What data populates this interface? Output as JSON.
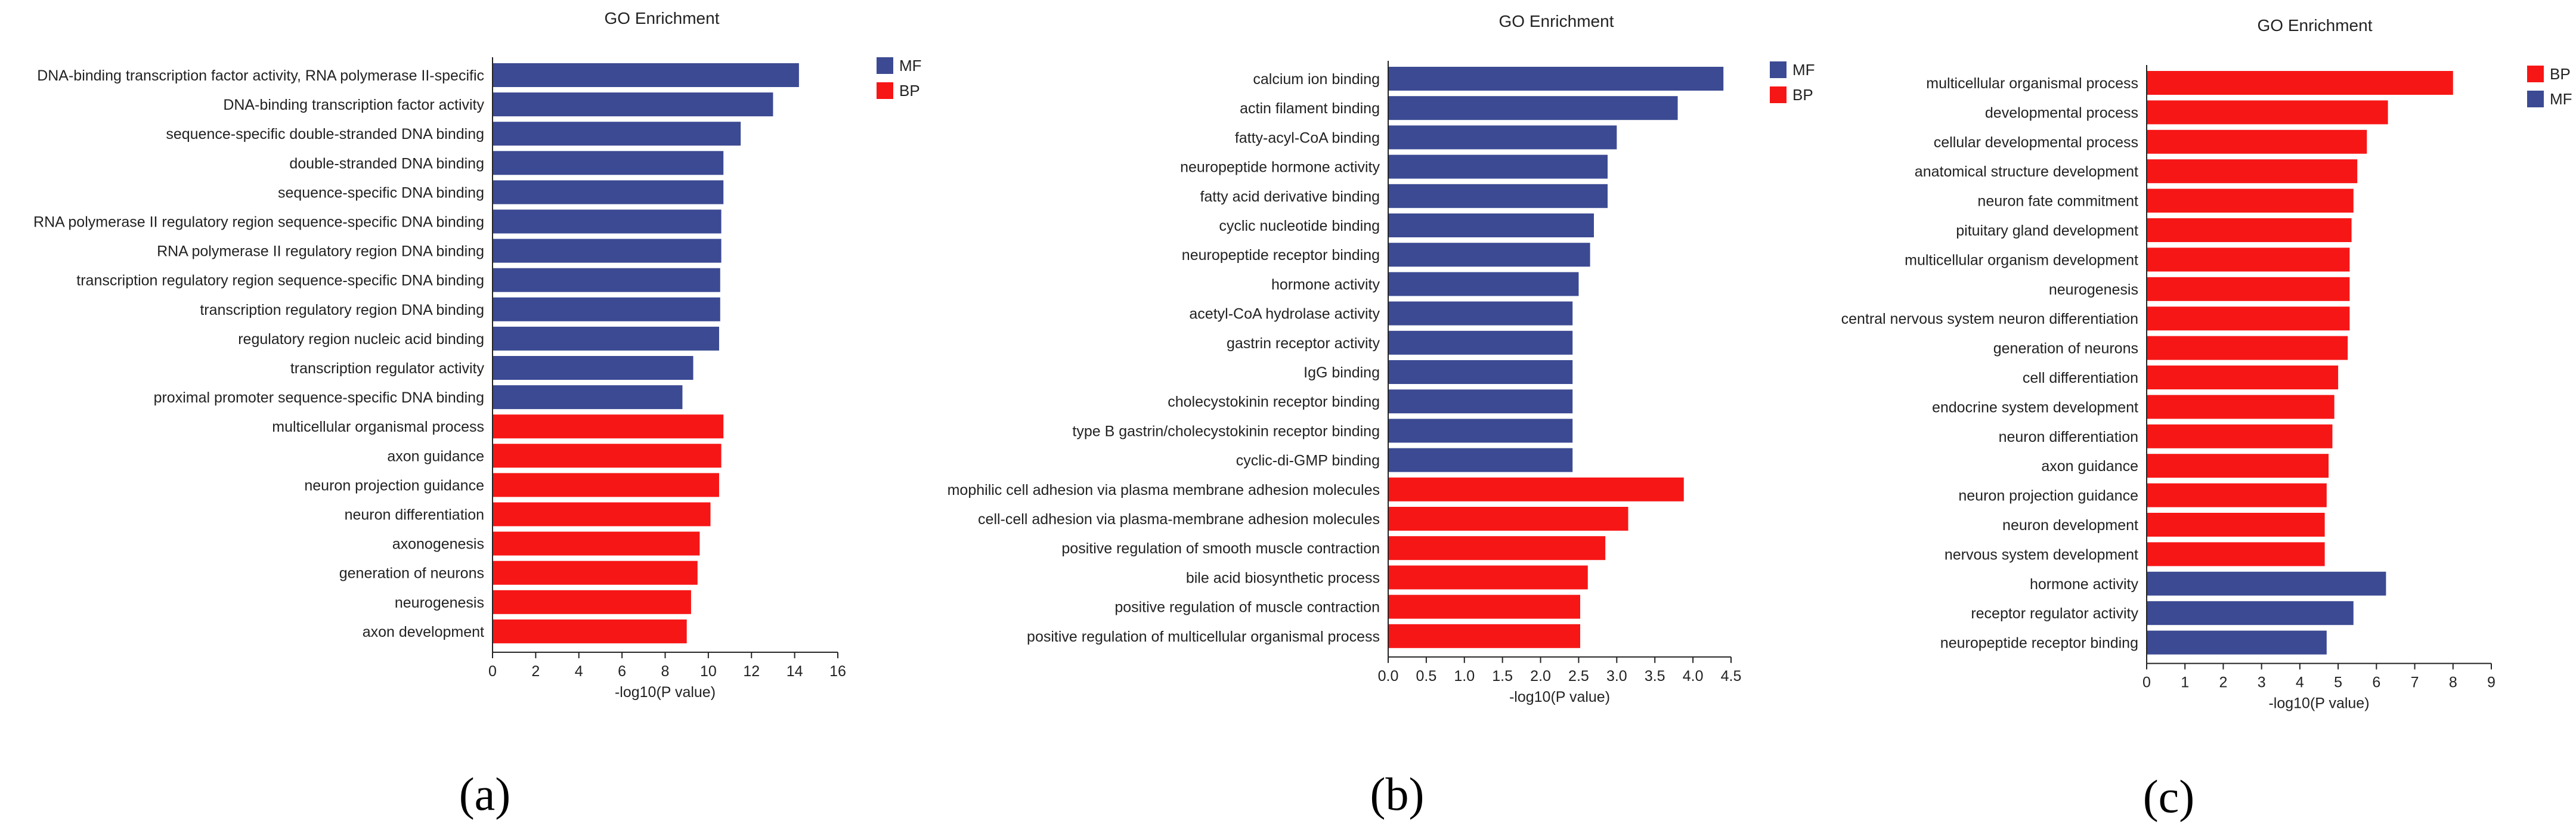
{
  "colors": {
    "MF": "#3c4a93",
    "BP": "#f71616",
    "axis": "#222222"
  },
  "chart_data": [
    {
      "type": "bar",
      "orientation": "horizontal",
      "panel_label": "(a)",
      "title": "GO Enrichment",
      "xlabel": "-log10(P value)",
      "xlim": [
        0,
        16
      ],
      "xticks": [
        "0",
        "2",
        "4",
        "6",
        "8",
        "10",
        "12",
        "14",
        "16"
      ],
      "legend": [
        {
          "name": "MF"
        },
        {
          "name": "BP"
        }
      ],
      "legend_position": "top-right",
      "categories": [
        "DNA-binding transcription factor activity, RNA polymerase II-specific",
        "DNA-binding transcription factor activity",
        "sequence-specific double-stranded DNA binding",
        "double-stranded DNA binding",
        "sequence-specific DNA binding",
        "RNA polymerase II regulatory region sequence-specific DNA binding",
        "RNA polymerase II regulatory region DNA binding",
        "transcription regulatory region sequence-specific DNA binding",
        "transcription regulatory region DNA binding",
        "regulatory region nucleic acid binding",
        "transcription regulator activity",
        "proximal promoter sequence-specific DNA binding",
        "multicellular organismal process",
        "axon guidance",
        "neuron projection guidance",
        "neuron differentiation",
        "axonogenesis",
        "generation of neurons",
        "neurogenesis",
        "axon development"
      ],
      "values": [
        14.2,
        13.0,
        11.5,
        10.7,
        10.7,
        10.6,
        10.6,
        10.55,
        10.55,
        10.5,
        9.3,
        8.8,
        10.7,
        10.6,
        10.5,
        10.1,
        9.6,
        9.5,
        9.2,
        9.0
      ],
      "groups": [
        "MF",
        "MF",
        "MF",
        "MF",
        "MF",
        "MF",
        "MF",
        "MF",
        "MF",
        "MF",
        "MF",
        "MF",
        "BP",
        "BP",
        "BP",
        "BP",
        "BP",
        "BP",
        "BP",
        "BP"
      ]
    },
    {
      "type": "bar",
      "orientation": "horizontal",
      "panel_label": "(b)",
      "title": "GO Enrichment",
      "xlabel": "-log10(P value)",
      "xlim": [
        0,
        4.5
      ],
      "xticks": [
        "0.0",
        "0.5",
        "1.0",
        "1.5",
        "2.0",
        "2.5",
        "3.0",
        "3.5",
        "4.0",
        "4.5"
      ],
      "legend": [
        {
          "name": "MF"
        },
        {
          "name": "BP"
        }
      ],
      "legend_position": "top-right",
      "categories": [
        "calcium ion binding",
        "actin filament binding",
        "fatty-acyl-CoA binding",
        "neuropeptide hormone activity",
        "fatty acid derivative binding",
        "cyclic nucleotide binding",
        "neuropeptide receptor binding",
        "hormone activity",
        "acetyl-CoA hydrolase activity",
        "gastrin receptor activity",
        "IgG binding",
        "cholecystokinin receptor binding",
        "type B gastrin/cholecystokinin receptor binding",
        "cyclic-di-GMP binding",
        "mophilic cell adhesion via plasma membrane adhesion molecules",
        "cell-cell adhesion via plasma-membrane adhesion molecules",
        "positive regulation of smooth muscle contraction",
        "bile acid biosynthetic process",
        "positive regulation of muscle contraction",
        "positive regulation of multicellular organismal process"
      ],
      "values": [
        4.4,
        3.8,
        3.0,
        2.88,
        2.88,
        2.7,
        2.65,
        2.5,
        2.42,
        2.42,
        2.42,
        2.42,
        2.42,
        2.42,
        3.88,
        3.15,
        2.85,
        2.62,
        2.52,
        2.52
      ],
      "groups": [
        "MF",
        "MF",
        "MF",
        "MF",
        "MF",
        "MF",
        "MF",
        "MF",
        "MF",
        "MF",
        "MF",
        "MF",
        "MF",
        "MF",
        "BP",
        "BP",
        "BP",
        "BP",
        "BP",
        "BP"
      ]
    },
    {
      "type": "bar",
      "orientation": "horizontal",
      "panel_label": "(c)",
      "title": "GO Enrichment",
      "xlabel": "-log10(P value)",
      "xlim": [
        0,
        9
      ],
      "xticks": [
        "0",
        "1",
        "2",
        "3",
        "4",
        "5",
        "6",
        "7",
        "8",
        "9"
      ],
      "legend": [
        {
          "name": "BP"
        },
        {
          "name": "MF"
        }
      ],
      "legend_position": "top-right",
      "categories": [
        "multicellular organismal process",
        "developmental process",
        "cellular developmental process",
        "anatomical structure development",
        "neuron fate commitment",
        "pituitary gland development",
        "multicellular organism development",
        "neurogenesis",
        "central nervous system neuron differentiation",
        "generation of neurons",
        "cell differentiation",
        "endocrine system development",
        "neuron differentiation",
        "axon guidance",
        "neuron projection guidance",
        "neuron development",
        "nervous system development",
        "hormone activity",
        "receptor regulator activity",
        "neuropeptide receptor binding"
      ],
      "values": [
        8.0,
        6.3,
        5.75,
        5.5,
        5.4,
        5.35,
        5.3,
        5.3,
        5.3,
        5.25,
        5.0,
        4.9,
        4.85,
        4.75,
        4.7,
        4.65,
        4.65,
        6.25,
        5.4,
        4.7
      ],
      "groups": [
        "BP",
        "BP",
        "BP",
        "BP",
        "BP",
        "BP",
        "BP",
        "BP",
        "BP",
        "BP",
        "BP",
        "BP",
        "BP",
        "BP",
        "BP",
        "BP",
        "BP",
        "MF",
        "MF",
        "MF"
      ]
    }
  ]
}
